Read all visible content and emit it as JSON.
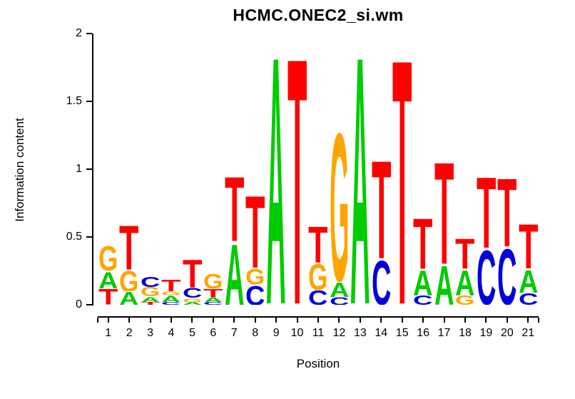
{
  "chart_data": {
    "type": "bar",
    "subtype": "sequence-logo",
    "title": "HCMC.ONEC2_si.wm",
    "xlabel": "Position",
    "ylabel": "Information content",
    "ylim": [
      0,
      2
    ],
    "yticks": [
      0,
      0.5,
      1,
      1.5,
      2
    ],
    "ytick_labels": [
      "0",
      "0.5",
      "1",
      "1.5",
      "2"
    ],
    "xtick_labels": [
      "1",
      "2",
      "3",
      "4",
      "5",
      "6",
      "7",
      "8",
      "9",
      "10",
      "11",
      "12",
      "13",
      "14",
      "15",
      "16",
      "17",
      "18",
      "19",
      "20",
      "21"
    ],
    "grid": false,
    "legend": "none",
    "letter_colors": {
      "A": "#00CC00",
      "C": "#0000DD",
      "G": "#FFA500",
      "T": "#FF0000"
    },
    "stacks": [
      [
        {
          "letter": "T",
          "height": 0.12
        },
        {
          "letter": "A",
          "height": 0.13
        },
        {
          "letter": "G",
          "height": 0.19
        }
      ],
      [
        {
          "letter": "A",
          "height": 0.1
        },
        {
          "letter": "G",
          "height": 0.16
        },
        {
          "letter": "T",
          "height": 0.34
        }
      ],
      [
        {
          "letter": "T",
          "height": 0.02
        },
        {
          "letter": "A",
          "height": 0.04
        },
        {
          "letter": "G",
          "height": 0.07
        },
        {
          "letter": "C",
          "height": 0.08
        }
      ],
      [
        {
          "letter": "C",
          "height": 0.02
        },
        {
          "letter": "A",
          "height": 0.05
        },
        {
          "letter": "G",
          "height": 0.03
        },
        {
          "letter": "T",
          "height": 0.09
        }
      ],
      [
        {
          "letter": "A",
          "height": 0.02
        },
        {
          "letter": "G",
          "height": 0.03
        },
        {
          "letter": "C",
          "height": 0.075
        },
        {
          "letter": "T",
          "height": 0.215
        }
      ],
      [
        {
          "letter": "C",
          "height": 0.02
        },
        {
          "letter": "A",
          "height": 0.035
        },
        {
          "letter": "T",
          "height": 0.065
        },
        {
          "letter": "G",
          "height": 0.11
        }
      ],
      [
        {
          "letter": "A",
          "height": 0.47
        },
        {
          "letter": "T",
          "height": 0.5
        }
      ],
      [
        {
          "letter": "C",
          "height": 0.15
        },
        {
          "letter": "G",
          "height": 0.12
        },
        {
          "letter": "T",
          "height": 0.56
        }
      ],
      [
        {
          "letter": "A",
          "height": 1.92
        }
      ],
      [
        {
          "letter": "T",
          "height": 1.91
        }
      ],
      [
        {
          "letter": "C",
          "height": 0.11
        },
        {
          "letter": "G",
          "height": 0.2
        },
        {
          "letter": "T",
          "height": 0.28
        }
      ],
      [
        {
          "letter": "C",
          "height": 0.06
        },
        {
          "letter": "A",
          "height": 0.11
        },
        {
          "letter": "G",
          "height": 1.15
        }
      ],
      [
        {
          "letter": "A",
          "height": 1.92
        }
      ],
      [
        {
          "letter": "C",
          "height": 0.34
        },
        {
          "letter": "T",
          "height": 0.76
        }
      ],
      [
        {
          "letter": "T",
          "height": 1.9
        }
      ],
      [
        {
          "letter": "C",
          "height": 0.07
        },
        {
          "letter": "A",
          "height": 0.195
        },
        {
          "letter": "T",
          "height": 0.39
        }
      ],
      [
        {
          "letter": "A",
          "height": 0.3
        },
        {
          "letter": "T",
          "height": 0.79
        }
      ],
      [
        {
          "letter": "G",
          "height": 0.07
        },
        {
          "letter": "A",
          "height": 0.195
        },
        {
          "letter": "T",
          "height": 0.235
        }
      ],
      [
        {
          "letter": "C",
          "height": 0.42
        },
        {
          "letter": "T",
          "height": 0.55
        }
      ],
      [
        {
          "letter": "C",
          "height": 0.43
        },
        {
          "letter": "T",
          "height": 0.53
        }
      ],
      [
        {
          "letter": "C",
          "height": 0.09
        },
        {
          "letter": "A",
          "height": 0.175
        },
        {
          "letter": "T",
          "height": 0.345
        }
      ]
    ]
  }
}
